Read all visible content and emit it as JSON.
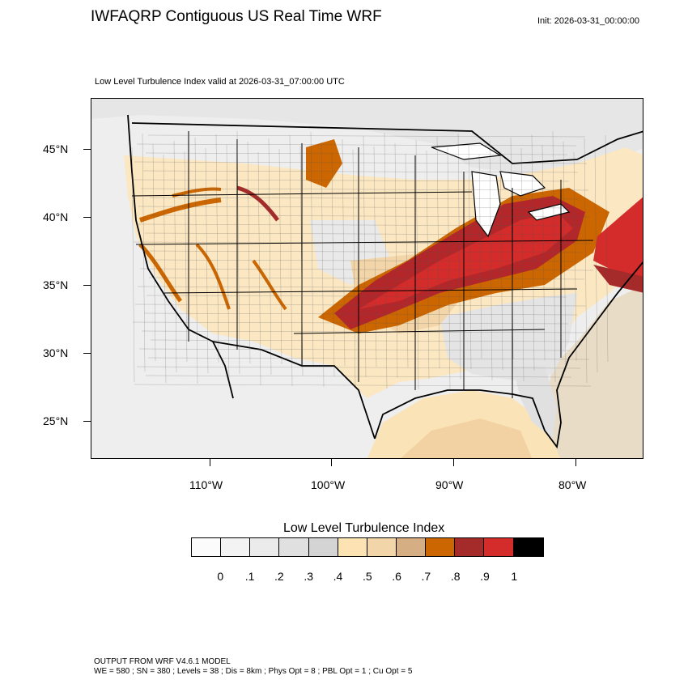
{
  "title": "IWFAQRP Contiguous US Real Time WRF",
  "init": "Init: 2026-03-31_00:00:00",
  "subtitle": "Low Level Turbulence Index valid at 2026-03-31_07:00:00 UTC",
  "latitude_labels": [
    "45°N",
    "40°N",
    "35°N",
    "30°N",
    "25°N"
  ],
  "longitude_labels": [
    "110°W",
    "100°W",
    "90°W",
    "80°W"
  ],
  "colorbar": {
    "title": "Low Level Turbulence Index",
    "colors": [
      "#fbfbfb",
      "#f3f3f3",
      "#ebebeb",
      "#e0e0e0",
      "#d4d4d4",
      "#fde3b4",
      "#f2d5a8",
      "#d6ae84",
      "#cc6600",
      "#a52a2a",
      "#d42b2b",
      "#000000"
    ],
    "ticks": [
      "0",
      ".1",
      ".2",
      ".3",
      ".4",
      ".5",
      ".6",
      ".7",
      ".8",
      ".9",
      "1"
    ]
  },
  "footer": {
    "line1": "OUTPUT FROM WRF V4.6.1 MODEL",
    "line2": "WE = 580 ; SN = 380 ; Levels = 38 ; Dis = 8km ; Phys Opt = 8 ; PBL Opt = 1 ; Cu Opt = 5"
  }
}
